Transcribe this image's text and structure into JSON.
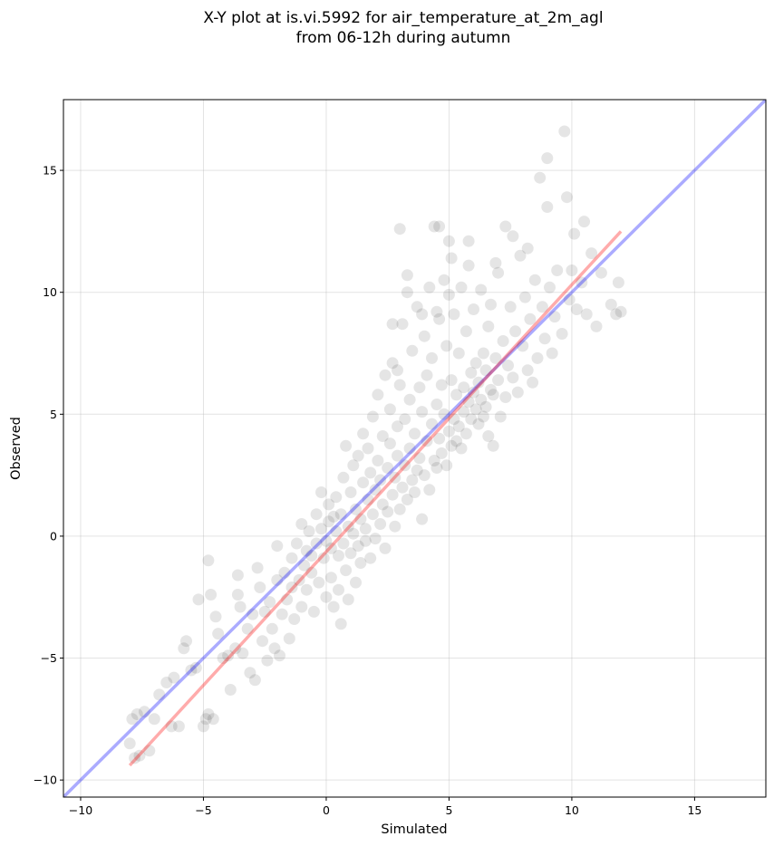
{
  "chart_data": {
    "type": "scatter",
    "title": [
      "X-Y plot at is.vi.5992 for air_temperature_at_2m_agl",
      "from 06-12h during autumn"
    ],
    "xlabel": "Simulated",
    "ylabel": "Observed",
    "xlim": [
      -10.7,
      17.9
    ],
    "ylim": [
      -10.7,
      17.9
    ],
    "xticks": [
      -10,
      -5,
      0,
      5,
      10,
      15
    ],
    "yticks": [
      -10,
      -5,
      0,
      5,
      10,
      15
    ],
    "xtick_labels": [
      "−10",
      "−5",
      "0",
      "5",
      "10",
      "15"
    ],
    "ytick_labels": [
      "−10",
      "−5",
      "0",
      "5",
      "10",
      "15"
    ],
    "grid": true,
    "colors": {
      "points": "#000000",
      "identity_line": "#0000ff",
      "fit_line": "#ff0000"
    },
    "identity_line": {
      "x": [
        -10.7,
        17.9
      ],
      "y": [
        -10.7,
        17.9
      ]
    },
    "fit_line": {
      "x": [
        -8,
        12
      ],
      "y": [
        -9.4,
        12.5
      ]
    },
    "points": [
      [
        -8,
        -8.5
      ],
      [
        -7.8,
        -9.1
      ],
      [
        -7.6,
        -9
      ],
      [
        -7.7,
        -7.3
      ],
      [
        -7.9,
        -7.5
      ],
      [
        -7.4,
        -7.2
      ],
      [
        -7.2,
        -8.8
      ],
      [
        -7,
        -7.5
      ],
      [
        -6.8,
        -6.5
      ],
      [
        -6.5,
        -6
      ],
      [
        -6.3,
        -7.8
      ],
      [
        -6.2,
        -5.8
      ],
      [
        -6,
        -7.8
      ],
      [
        -5.8,
        -4.6
      ],
      [
        -5.7,
        -4.3
      ],
      [
        -5.5,
        -5.5
      ],
      [
        -5.3,
        -5.4
      ],
      [
        -5.2,
        -2.6
      ],
      [
        -5,
        -7.8
      ],
      [
        -4.9,
        -7.5
      ],
      [
        -4.8,
        -7.3
      ],
      [
        -4.7,
        -2.4
      ],
      [
        -4.8,
        -1
      ],
      [
        -4.6,
        -7.5
      ],
      [
        -4.5,
        -3.3
      ],
      [
        -4.4,
        -4
      ],
      [
        -4.2,
        -5
      ],
      [
        -4,
        -4.9
      ],
      [
        -3.9,
        -6.3
      ],
      [
        -3.7,
        -4.6
      ],
      [
        -3.6,
        -2.4
      ],
      [
        -3.6,
        -1.6
      ],
      [
        -3.5,
        -2.9
      ],
      [
        -3.4,
        -4.8
      ],
      [
        -3.2,
        -3.8
      ],
      [
        -3.1,
        -5.6
      ],
      [
        -3,
        -3.2
      ],
      [
        -2.9,
        -5.9
      ],
      [
        -2.8,
        -1.3
      ],
      [
        -2.7,
        -2.1
      ],
      [
        -2.6,
        -4.3
      ],
      [
        -2.5,
        -3.1
      ],
      [
        -2.4,
        -5.1
      ],
      [
        -2.3,
        -2.7
      ],
      [
        -2.2,
        -3.8
      ],
      [
        -2.1,
        -4.6
      ],
      [
        -2,
        -1.8
      ],
      [
        -2,
        -0.4
      ],
      [
        -1.9,
        -4.9
      ],
      [
        -1.8,
        -3.2
      ],
      [
        -1.7,
        -1.5
      ],
      [
        -1.6,
        -2.6
      ],
      [
        -1.5,
        -4.2
      ],
      [
        -1.4,
        -0.9
      ],
      [
        -1.4,
        -2.1
      ],
      [
        -1.3,
        -3.4
      ],
      [
        -1.2,
        -0.3
      ],
      [
        -1.1,
        -1.8
      ],
      [
        -1,
        -2.9
      ],
      [
        -1,
        0.5
      ],
      [
        -0.9,
        -1.2
      ],
      [
        -0.8,
        -0.6
      ],
      [
        -0.8,
        -2.2
      ],
      [
        -0.7,
        0.2
      ],
      [
        -0.6,
        -1.5
      ],
      [
        -0.6,
        -0.8
      ],
      [
        -0.5,
        -3.1
      ],
      [
        -0.4,
        0.9
      ],
      [
        -0.4,
        -0.3
      ],
      [
        -0.3,
        -1.9
      ],
      [
        -0.2,
        1.8
      ],
      [
        -0.2,
        0.3
      ],
      [
        -0.1,
        -0.9
      ],
      [
        0,
        -2.5
      ],
      [
        0,
        -0.2
      ],
      [
        0.1,
        0.6
      ],
      [
        0.1,
        1.3
      ],
      [
        0.2,
        -1.7
      ],
      [
        0.2,
        -0.5
      ],
      [
        0.3,
        0.8
      ],
      [
        0.3,
        -2.9
      ],
      [
        0.4,
        0.2
      ],
      [
        0.4,
        1.6
      ],
      [
        0.5,
        -0.8
      ],
      [
        0.5,
        -2.2
      ],
      [
        0.6,
        -3.6
      ],
      [
        0.6,
        0.9
      ],
      [
        0.7,
        2.4
      ],
      [
        0.7,
        -0.3
      ],
      [
        0.8,
        -1.4
      ],
      [
        0.8,
        3.7
      ],
      [
        0.9,
        0.4
      ],
      [
        0.9,
        -2.6
      ],
      [
        1,
        1.8
      ],
      [
        1,
        -0.7
      ],
      [
        1.1,
        0.1
      ],
      [
        1.1,
        2.9
      ],
      [
        1.2,
        -1.9
      ],
      [
        1.2,
        1.1
      ],
      [
        1.3,
        -0.4
      ],
      [
        1.3,
        3.3
      ],
      [
        1.4,
        0.7
      ],
      [
        1.4,
        -1.1
      ],
      [
        1.5,
        2.2
      ],
      [
        1.5,
        4.2
      ],
      [
        1.6,
        0.3
      ],
      [
        1.6,
        -0.2
      ],
      [
        1.7,
        1.5
      ],
      [
        1.7,
        3.6
      ],
      [
        1.8,
        -0.9
      ],
      [
        1.8,
        2.6
      ],
      [
        1.9,
        0.9
      ],
      [
        1.9,
        4.9
      ],
      [
        2,
        1.9
      ],
      [
        2,
        -0.1
      ],
      [
        2.1,
        3.1
      ],
      [
        2.1,
        5.8
      ],
      [
        2.2,
        0.5
      ],
      [
        2.2,
        2.3
      ],
      [
        2.3,
        1.3
      ],
      [
        2.3,
        4.1
      ],
      [
        2.4,
        6.6
      ],
      [
        2.4,
        -0.5
      ],
      [
        2.5,
        2.8
      ],
      [
        2.5,
        1
      ],
      [
        2.6,
        3.8
      ],
      [
        2.6,
        5.2
      ],
      [
        2.7,
        1.7
      ],
      [
        2.7,
        7.1
      ],
      [
        2.8,
        2.4
      ],
      [
        2.8,
        0.4
      ],
      [
        2.9,
        4.5
      ],
      [
        2.9,
        3.3
      ],
      [
        3,
        1.1
      ],
      [
        3,
        6.2
      ],
      [
        3.1,
        2
      ],
      [
        3.1,
        8.7
      ],
      [
        3.2,
        4.8
      ],
      [
        3.2,
        2.9
      ],
      [
        3.3,
        1.5
      ],
      [
        3.3,
        10.7
      ],
      [
        3.4,
        3.6
      ],
      [
        3.4,
        5.6
      ],
      [
        3.5,
        2.3
      ],
      [
        3.5,
        7.6
      ],
      [
        3.6,
        1.8
      ],
      [
        3.6,
        4.2
      ],
      [
        3.7,
        9.4
      ],
      [
        3.7,
        2.7
      ],
      [
        3.8,
        6.1
      ],
      [
        3.8,
        3.2
      ],
      [
        3.9,
        0.7
      ],
      [
        3.9,
        5.1
      ],
      [
        4,
        8.2
      ],
      [
        4,
        2.5
      ],
      [
        4.1,
        3.9
      ],
      [
        4.1,
        6.6
      ],
      [
        4.2,
        10.2
      ],
      [
        4.2,
        1.9
      ],
      [
        4.3,
        4.6
      ],
      [
        4.3,
        7.3
      ],
      [
        4.4,
        3.1
      ],
      [
        4.4,
        12.7
      ],
      [
        4.5,
        5.4
      ],
      [
        4.5,
        2.8
      ],
      [
        4.6,
        8.9
      ],
      [
        4.6,
        4
      ],
      [
        4.7,
        6.2
      ],
      [
        4.7,
        3.4
      ],
      [
        4.8,
        10.5
      ],
      [
        4.8,
        5
      ],
      [
        4.9,
        2.9
      ],
      [
        4.9,
        7.8
      ],
      [
        5,
        4.3
      ],
      [
        5,
        12.1
      ],
      [
        5.1,
        3.7
      ],
      [
        5.1,
        6.4
      ],
      [
        5.2,
        9.1
      ],
      [
        5.2,
        4.8
      ],
      [
        5.3,
        3.9
      ],
      [
        5.3,
        5.8
      ],
      [
        5.4,
        7.5
      ],
      [
        5.4,
        4.5
      ],
      [
        5.5,
        10.2
      ],
      [
        5.5,
        3.6
      ],
      [
        5.6,
        6.1
      ],
      [
        5.6,
        5.1
      ],
      [
        5.7,
        4.2
      ],
      [
        5.7,
        8.4
      ],
      [
        5.8,
        5.5
      ],
      [
        5.8,
        12.1
      ],
      [
        5.9,
        6.7
      ],
      [
        5.9,
        4.8
      ],
      [
        6,
        5.9
      ],
      [
        6,
        9.3
      ],
      [
        6.1,
        5.2
      ],
      [
        6.1,
        7.1
      ],
      [
        6.2,
        4.6
      ],
      [
        6.2,
        6.3
      ],
      [
        6.3,
        5.6
      ],
      [
        6.3,
        10.1
      ],
      [
        6.4,
        7.5
      ],
      [
        6.4,
        4.9
      ],
      [
        6.5,
        6.8
      ],
      [
        6.5,
        5.3
      ],
      [
        6.6,
        8.6
      ],
      [
        6.6,
        4.1
      ],
      [
        6.7,
        6
      ],
      [
        6.7,
        9.5
      ],
      [
        6.8,
        5.8
      ],
      [
        6.8,
        3.7
      ],
      [
        6.9,
        7.3
      ],
      [
        7,
        6.4
      ],
      [
        7,
        10.8
      ],
      [
        7.1,
        4.9
      ],
      [
        7.2,
        8
      ],
      [
        7.3,
        5.7
      ],
      [
        7.3,
        12.7
      ],
      [
        7.4,
        7
      ],
      [
        7.5,
        9.4
      ],
      [
        7.6,
        6.5
      ],
      [
        7.7,
        8.4
      ],
      [
        7.8,
        5.9
      ],
      [
        7.9,
        11.5
      ],
      [
        8,
        7.8
      ],
      [
        8.1,
        9.8
      ],
      [
        8.2,
        6.8
      ],
      [
        8.3,
        8.9
      ],
      [
        8.4,
        6.3
      ],
      [
        8.5,
        10.5
      ],
      [
        8.6,
        7.3
      ],
      [
        8.7,
        14.7
      ],
      [
        8.8,
        9.4
      ],
      [
        8.9,
        8.1
      ],
      [
        9,
        15.5
      ],
      [
        9.1,
        10.2
      ],
      [
        9.2,
        7.5
      ],
      [
        9.3,
        9
      ],
      [
        9.4,
        10.9
      ],
      [
        9.6,
        8.3
      ],
      [
        9.7,
        16.6
      ],
      [
        9.8,
        13.9
      ],
      [
        9.9,
        9.7
      ],
      [
        10,
        10.9
      ],
      [
        10.1,
        12.4
      ],
      [
        10.2,
        9.3
      ],
      [
        10.4,
        10.4
      ],
      [
        10.5,
        12.9
      ],
      [
        10.6,
        9.1
      ],
      [
        10.8,
        11.6
      ],
      [
        11,
        8.6
      ],
      [
        11.2,
        10.8
      ],
      [
        11.6,
        9.5
      ],
      [
        11.9,
        10.4
      ],
      [
        11.8,
        9.1
      ],
      [
        12,
        9.2
      ],
      [
        9,
        13.5
      ],
      [
        8.2,
        11.8
      ],
      [
        7.6,
        12.3
      ],
      [
        6.9,
        11.2
      ],
      [
        3,
        12.6
      ],
      [
        4.6,
        12.7
      ],
      [
        5.8,
        11.1
      ],
      [
        5.1,
        11.4
      ],
      [
        2.7,
        8.7
      ],
      [
        3.3,
        10
      ],
      [
        3.9,
        9.1
      ],
      [
        5,
        9.9
      ],
      [
        4.5,
        9.2
      ],
      [
        2.9,
        6.8
      ]
    ]
  }
}
